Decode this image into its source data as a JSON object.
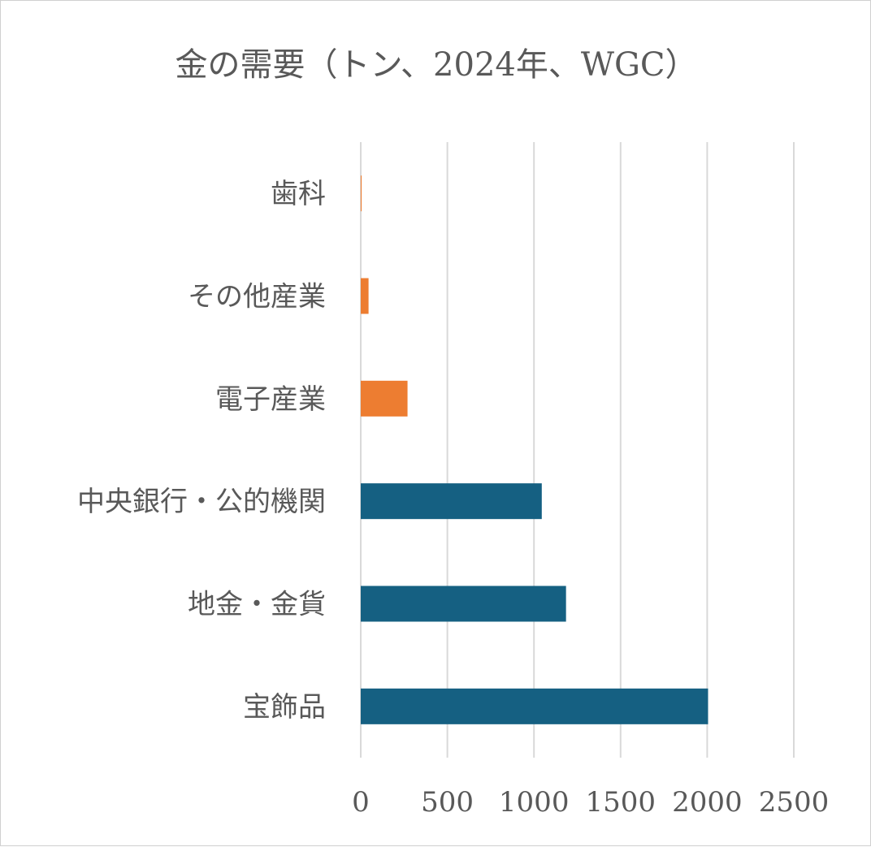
{
  "chart_data": {
    "type": "bar",
    "orientation": "horizontal",
    "title": "金の需要（トン、2024年、WGC）",
    "xlabel": "",
    "ylabel": "",
    "xlim": [
      0,
      2500
    ],
    "ticks": [
      0,
      500,
      1000,
      1500,
      2000,
      2500
    ],
    "tick_labels": [
      "0",
      "500",
      "1000",
      "1500",
      "2000",
      "2500"
    ],
    "grid": true,
    "legend": "none",
    "categories": [
      "歯科",
      "その他産業",
      "電子産業",
      "中央銀行・公的機関",
      "地金・金貨",
      "宝飾品"
    ],
    "values": [
      5,
      45,
      270,
      1045,
      1185,
      2005
    ],
    "colors": [
      "#ED7D31",
      "#ED7D31",
      "#ED7D31",
      "#156082",
      "#156082",
      "#156082"
    ]
  }
}
